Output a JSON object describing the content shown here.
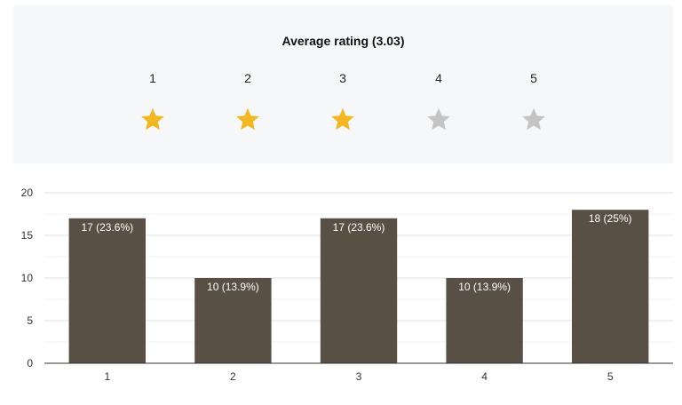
{
  "rating": {
    "title": "Average rating (3.03)",
    "filled_color": "#f3b724",
    "empty_color": "#c4c4c4",
    "stars": [
      {
        "label": "1",
        "filled": true
      },
      {
        "label": "2",
        "filled": true
      },
      {
        "label": "3",
        "filled": true
      },
      {
        "label": "4",
        "filled": false
      },
      {
        "label": "5",
        "filled": false
      }
    ]
  },
  "chart_data": {
    "type": "bar",
    "categories": [
      "1",
      "2",
      "3",
      "4",
      "5"
    ],
    "values": [
      17,
      10,
      17,
      10,
      18
    ],
    "data_labels": [
      "17 (23.6%)",
      "10 (13.9%)",
      "17 (23.6%)",
      "10 (13.9%)",
      "18 (25%)"
    ],
    "yticks": [
      "0",
      "5",
      "10",
      "15",
      "20"
    ],
    "ylim": [
      0,
      20
    ],
    "grid": true,
    "bar_color": "#584f45",
    "title": "",
    "xlabel": "",
    "ylabel": ""
  }
}
